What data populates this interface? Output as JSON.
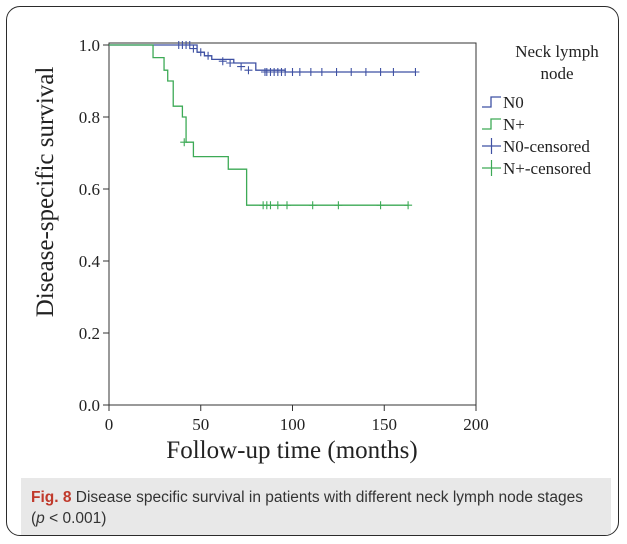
{
  "chart_data": {
    "type": "line",
    "subtype": "kaplan-meier",
    "xlabel": "Follow-up time (months)",
    "ylabel": "Disease-specific survival",
    "xlim": [
      0,
      200
    ],
    "ylim": [
      0.0,
      1.0
    ],
    "xticks": [
      "0",
      "50",
      "100",
      "150",
      "200"
    ],
    "yticks": [
      "0.0",
      "0.2",
      "0.4",
      "0.6",
      "0.8",
      "1.0"
    ],
    "legend_title": "Neck lymph node",
    "legend_position": "top-right",
    "legend": [
      {
        "label": "N0",
        "kind": "line",
        "color": "#3f51a3"
      },
      {
        "label": "N+",
        "kind": "line",
        "color": "#3daa56"
      },
      {
        "label": "N0-censored",
        "kind": "censor",
        "color": "#3f51a3"
      },
      {
        "label": "N+-censored",
        "kind": "censor",
        "color": "#3daa56"
      }
    ],
    "series": [
      {
        "name": "N0",
        "color": "#3f51a3",
        "steps": [
          [
            0,
            1.0
          ],
          [
            48,
            0.98
          ],
          [
            52,
            0.97
          ],
          [
            56,
            0.96
          ],
          [
            68,
            0.95
          ],
          [
            80,
            0.93
          ],
          [
            96,
            0.925
          ],
          [
            130,
            0.925
          ],
          [
            167,
            0.925
          ]
        ],
        "censored": [
          [
            38,
            1.0
          ],
          [
            40,
            1.0
          ],
          [
            42,
            1.0
          ],
          [
            44,
            1.0
          ],
          [
            46,
            0.99
          ],
          [
            50,
            0.98
          ],
          [
            54,
            0.97
          ],
          [
            62,
            0.955
          ],
          [
            66,
            0.95
          ],
          [
            72,
            0.94
          ],
          [
            76,
            0.93
          ],
          [
            85,
            0.925
          ],
          [
            86,
            0.925
          ],
          [
            88,
            0.925
          ],
          [
            90,
            0.925
          ],
          [
            92,
            0.925
          ],
          [
            94,
            0.925
          ],
          [
            96,
            0.925
          ],
          [
            100,
            0.925
          ],
          [
            104,
            0.925
          ],
          [
            110,
            0.925
          ],
          [
            116,
            0.925
          ],
          [
            124,
            0.925
          ],
          [
            132,
            0.925
          ],
          [
            140,
            0.925
          ],
          [
            148,
            0.925
          ],
          [
            155,
            0.925
          ],
          [
            167,
            0.925
          ]
        ]
      },
      {
        "name": "N+",
        "color": "#3daa56",
        "steps": [
          [
            0,
            1.0
          ],
          [
            24,
            0.965
          ],
          [
            30,
            0.93
          ],
          [
            32,
            0.9
          ],
          [
            35,
            0.83
          ],
          [
            40,
            0.8
          ],
          [
            42,
            0.73
          ],
          [
            46,
            0.69
          ],
          [
            65,
            0.655
          ],
          [
            75,
            0.555
          ],
          [
            163,
            0.555
          ]
        ],
        "censored": [
          [
            41,
            0.73
          ],
          [
            84,
            0.555
          ],
          [
            86,
            0.555
          ],
          [
            88,
            0.555
          ],
          [
            92,
            0.555
          ],
          [
            97,
            0.555
          ],
          [
            111,
            0.555
          ],
          [
            125,
            0.555
          ],
          [
            148,
            0.555
          ],
          [
            163,
            0.555
          ]
        ]
      }
    ]
  },
  "caption": {
    "fig_label": "Fig. 8",
    "text_before": " Disease specific survival in patients with different neck lymph node stages (",
    "p_symbol": "p",
    "text_after": " < 0.001)"
  }
}
